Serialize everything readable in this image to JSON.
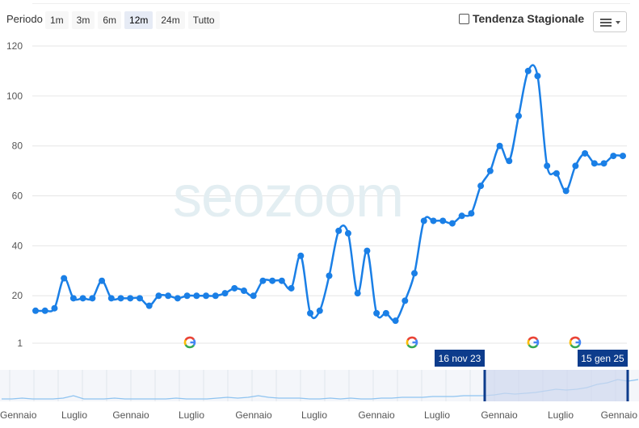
{
  "toolbar": {
    "period_label": "Periodo",
    "ranges": [
      "1m",
      "3m",
      "6m",
      "12m",
      "24m",
      "Tutto"
    ],
    "active_range": "12m",
    "seasonal_label": "Tendenza Stagionale",
    "menu_icon": "hamburger-menu-icon"
  },
  "watermark": "seozoom",
  "colors": {
    "series": "#1a7fe6",
    "navigator_mask": "#cfd9ee",
    "navigator_flag": "#0d3c8c",
    "grid": "#e6e6e6"
  },
  "chart_data": {
    "type": "line",
    "y_ticks": [
      1,
      20,
      40,
      60,
      80,
      100,
      120
    ],
    "ylim": [
      1,
      120
    ],
    "grid": true,
    "values": [
      14,
      14,
      15,
      27,
      19,
      19,
      19,
      26,
      19,
      19,
      19,
      19,
      16,
      20,
      20,
      19,
      20,
      20,
      20,
      20,
      21,
      23,
      22,
      20,
      26,
      26,
      26,
      23,
      36,
      13,
      14,
      28,
      46,
      45,
      21,
      38,
      13,
      13,
      10,
      18,
      29,
      50,
      50,
      50,
      49,
      52,
      53,
      64,
      70,
      80,
      74,
      92,
      110,
      108,
      72,
      69,
      62,
      72,
      77,
      73,
      73,
      76,
      76
    ],
    "google_update_markers": 4,
    "navigator": {
      "start_label": "16 nov 23",
      "end_label": "15 gen 25",
      "x_labels": [
        "Gennaio",
        "Luglio",
        "Gennaio",
        "Luglio",
        "Gennaio",
        "Luglio",
        "Gennaio",
        "Luglio",
        "Gennaio",
        "Luglio",
        "Gennaio"
      ]
    }
  }
}
